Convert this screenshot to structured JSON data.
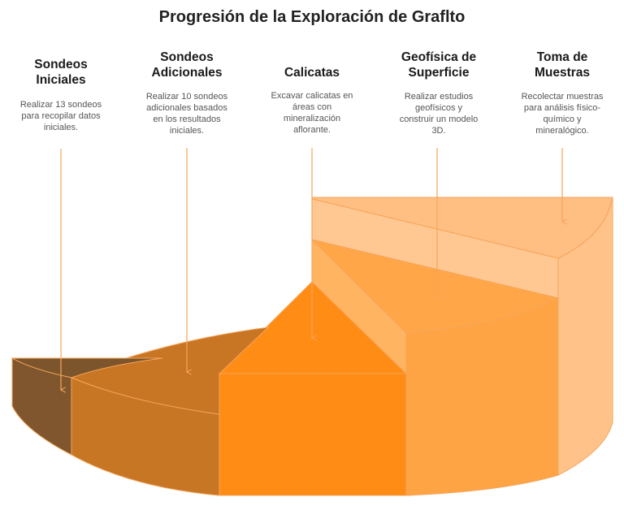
{
  "title": "Progresión de la Exploración de Graflto",
  "steps": [
    {
      "title_lines": [
        "Sondeos",
        "Iniciales"
      ],
      "desc_lines": [
        "Realizar 13 sondeos",
        "para recopilar datos",
        "iniciales."
      ],
      "color": "#7F562D"
    },
    {
      "title_lines": [
        "Sondeos",
        "Adicionales"
      ],
      "desc_lines": [
        "Realizar 10 sondeos",
        "adicionales basados",
        "en los resultados",
        "iniciales."
      ],
      "color": "#C77624"
    },
    {
      "title_lines": [
        "Calicatas"
      ],
      "desc_lines": [
        "Excavar calicatas en",
        "áreas con",
        "mineralización",
        "aflorante."
      ],
      "color": "#FF8C15"
    },
    {
      "title_lines": [
        "Geofísica de",
        "Superficie"
      ],
      "desc_lines": [
        "Realizar estudios",
        "geofísicos y",
        "construir un modelo",
        "3D."
      ],
      "color": "#FFA444"
    },
    {
      "title_lines": [
        "Toma de",
        "Muestras"
      ],
      "desc_lines": [
        "Recolectar muestras",
        "para análisis físico-",
        "químico y",
        "mineralógico."
      ],
      "color": "#FFC38A"
    }
  ]
}
